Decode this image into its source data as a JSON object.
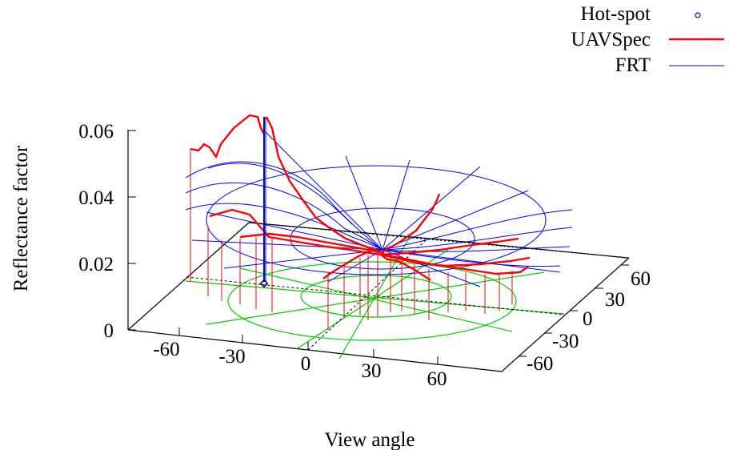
{
  "chart_data": {
    "type": "line",
    "xlabel": "View angle",
    "ylabel": "Reflectance factor",
    "z_ticks": [
      "0",
      "0.02",
      "0.04",
      "0.06"
    ],
    "x_ticks": [
      "-60",
      "-30",
      "0",
      "30",
      "60"
    ],
    "y_ticks": [
      "-60",
      "-30",
      "0",
      "30",
      "60"
    ],
    "legend": [
      {
        "label": "Hot-spot",
        "color": "#0000ff",
        "style": "point"
      },
      {
        "label": "UAVSpec",
        "color": "#ff0000",
        "style": "line"
      },
      {
        "label": "FRT",
        "color": "#0000ff",
        "style": "line"
      }
    ],
    "legend_position": "top-right",
    "grid_color": "#00cc00",
    "hotspot_reflectance": 0.014,
    "zlim": [
      0,
      0.06
    ]
  }
}
